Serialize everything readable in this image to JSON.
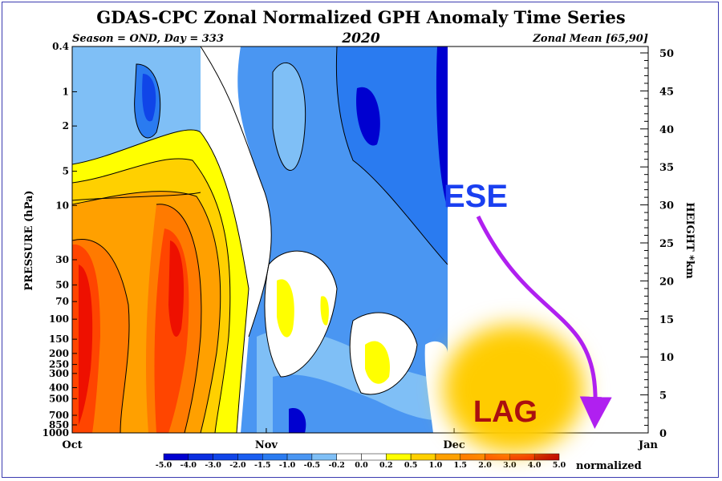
{
  "chart_data": {
    "type": "heatmap",
    "title": "GDAS-CPC Zonal Normalized GPH Anomaly Time Series",
    "subtitle_left": "Season = OND, Day = 333",
    "subtitle_center": "2020",
    "subtitle_right": "Zonal Mean [65,90]",
    "ylabel": "PRESSURE (hPa)",
    "y2label": "HEIGHT *km",
    "x_ticks": [
      "Oct",
      "Nov",
      "Dec",
      "Jan"
    ],
    "pressure_ticks": [
      "0.4",
      "1",
      "2",
      "5",
      "10",
      "30",
      "50",
      "70",
      "100",
      "150",
      "200",
      "250",
      "300",
      "400",
      "500",
      "700",
      "850",
      "1000"
    ],
    "height_ticks": [
      0,
      5,
      10,
      15,
      20,
      25,
      30,
      35,
      40,
      45,
      50
    ],
    "ylim_hPa": [
      1000,
      0.4
    ],
    "ylim_km": [
      0,
      50
    ],
    "data_end": "Nov 29",
    "colorbar_levels": [
      "-5.0",
      "-4.0",
      "-3.0",
      "-2.0",
      "-1.5",
      "-1.0",
      "-0.5",
      "-0.2",
      "0.0",
      "0.2",
      "0.5",
      "1.0",
      "1.5",
      "2.0",
      "3.0",
      "4.0",
      "5.0"
    ],
    "colorbar_colors": [
      "#0000d0",
      "#0a2ee0",
      "#1045e8",
      "#1a5ef0",
      "#2a7bf0",
      "#4a96f2",
      "#7fbff6",
      "#ffffff",
      "#ffffff",
      "#ffff00",
      "#ffd000",
      "#ffa000",
      "#ff7a00",
      "#ff4500",
      "#ee1000",
      "#c00000"
    ],
    "colorbar_unit": "normalized",
    "annotations": [
      "ESE",
      "LAG"
    ],
    "colors": {
      "ese": "#1a3ff0",
      "lag_text": "#aa1010",
      "lag_blob": "#ffcc00",
      "arrow": "#b020f0",
      "frame": "#3b3bb0"
    }
  }
}
